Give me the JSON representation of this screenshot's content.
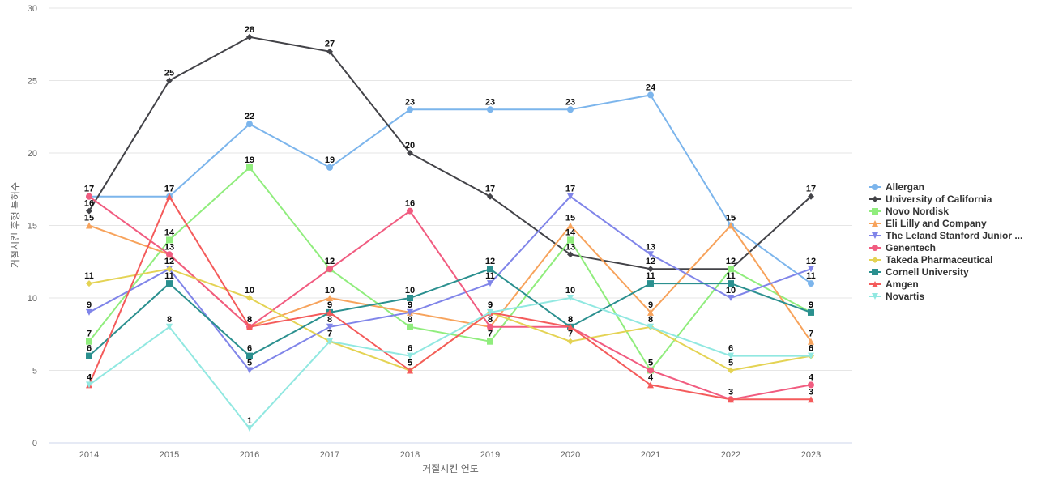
{
  "chart_data": {
    "type": "line",
    "xlabel": "거절시킨 연도",
    "ylabel": "거절시킨 후행 특허수",
    "ylim": [
      0,
      30
    ],
    "yticks": [
      0,
      5,
      10,
      15,
      20,
      25,
      30
    ],
    "grid": true,
    "legend_position": "right",
    "categories": [
      "2014",
      "2015",
      "2016",
      "2017",
      "2018",
      "2019",
      "2020",
      "2021",
      "2022",
      "2023"
    ],
    "series": [
      {
        "name": "Allergan",
        "color": "#7cb5ec",
        "marker": "circle",
        "values": [
          17,
          17,
          22,
          19,
          23,
          23,
          23,
          24,
          15,
          11
        ]
      },
      {
        "name": "University of California",
        "color": "#434348",
        "marker": "diamond",
        "values": [
          16,
          25,
          28,
          27,
          20,
          17,
          13,
          12,
          12,
          17
        ]
      },
      {
        "name": "Novo Nordisk",
        "color": "#90ed7d",
        "marker": "square",
        "values": [
          7,
          14,
          19,
          12,
          8,
          7,
          14,
          5,
          12,
          9
        ]
      },
      {
        "name": "Eli Lilly and Company",
        "color": "#f7a35c",
        "marker": "triangle",
        "values": [
          15,
          13,
          8,
          10,
          9,
          8,
          15,
          9,
          15,
          7
        ]
      },
      {
        "name": "The Leland Stanford Junior ...",
        "color": "#8085e9",
        "marker": "triangle-down",
        "values": [
          9,
          12,
          5,
          8,
          9,
          11,
          17,
          13,
          10,
          12
        ]
      },
      {
        "name": "Genentech",
        "color": "#f15c80",
        "marker": "circle",
        "values": [
          17,
          13,
          8,
          12,
          16,
          8,
          8,
          5,
          3,
          4
        ]
      },
      {
        "name": "Takeda Pharmaceutical",
        "color": "#e4d354",
        "marker": "diamond",
        "values": [
          11,
          12,
          10,
          7,
          5,
          9,
          7,
          8,
          5,
          6
        ]
      },
      {
        "name": "Cornell University",
        "color": "#2b908f",
        "marker": "square",
        "values": [
          6,
          11,
          6,
          9,
          10,
          12,
          8,
          11,
          11,
          9
        ]
      },
      {
        "name": "Amgen",
        "color": "#f45b5b",
        "marker": "triangle",
        "values": [
          4,
          17,
          8,
          9,
          5,
          9,
          8,
          4,
          3,
          3
        ]
      },
      {
        "name": "Novartis",
        "color": "#91e8e1",
        "marker": "triangle-down",
        "values": [
          4,
          8,
          1,
          7,
          6,
          9,
          10,
          8,
          6,
          6
        ]
      }
    ]
  }
}
